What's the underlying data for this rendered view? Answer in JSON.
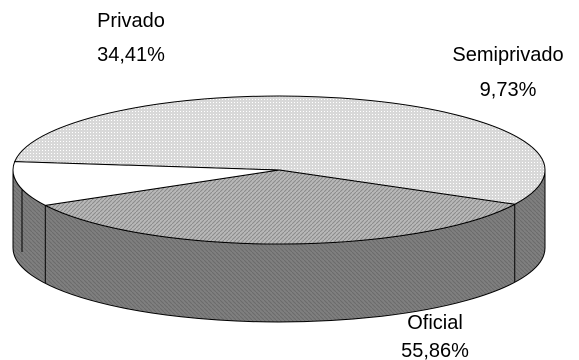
{
  "chart_data": {
    "type": "pie",
    "style": "3d",
    "slices": [
      {
        "label": "Oficial",
        "value": 55.86,
        "value_text": "55,86%"
      },
      {
        "label": "Privado",
        "value": 34.41,
        "value_text": "34,41%"
      },
      {
        "label": "Semiprivado",
        "value": 9.73,
        "value_text": "9,73%"
      }
    ],
    "legend": "none",
    "colors": {
      "top_light": "#d8d8d8",
      "top_dark": "#b8b8b8",
      "side": "#7f7f7f",
      "semiprivado": "#ffffff",
      "outline": "#000000"
    }
  }
}
